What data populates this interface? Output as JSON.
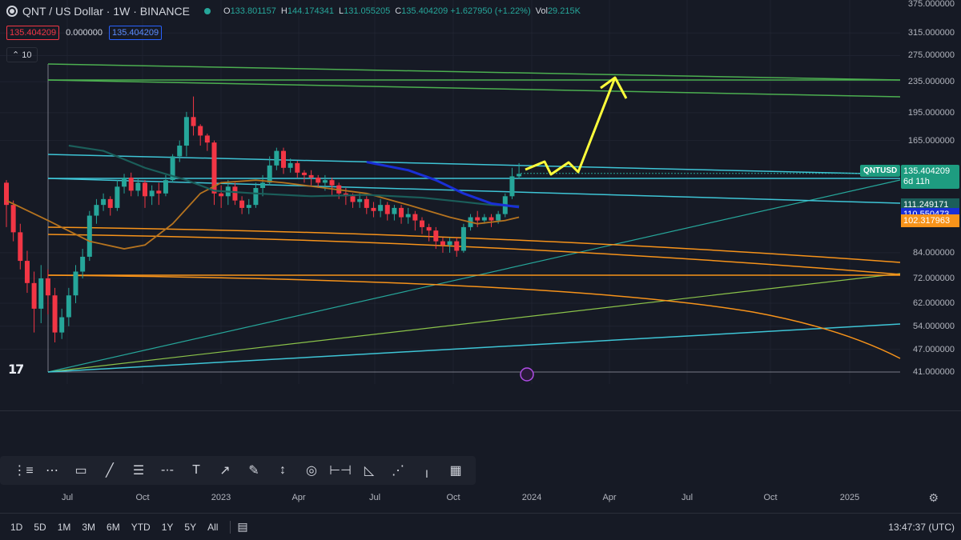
{
  "legend": {
    "title": "QNT / US Dollar · 1W · BINANCE",
    "ohlc": [
      {
        "k": "O",
        "v": "133.801157"
      },
      {
        "k": "H",
        "v": "144.174341"
      },
      {
        "k": "L",
        "v": "131.055205"
      },
      {
        "k": "C",
        "v": "135.404209 +1.627950 (+1.22%)"
      },
      {
        "k": "Vol",
        "v": "29.215K"
      }
    ]
  },
  "indicator": {
    "red_value": "135.404209",
    "zero_value": "0.000000",
    "blue_value": "135.404209",
    "collapse_count": "10"
  },
  "price_scale": {
    "ticks": [
      {
        "label": "375.000000",
        "price": 375
      },
      {
        "label": "315.000000",
        "price": 315
      },
      {
        "label": "275.000000",
        "price": 275
      },
      {
        "label": "235.000000",
        "price": 235
      },
      {
        "label": "195.000000",
        "price": 195
      },
      {
        "label": "165.000000",
        "price": 165
      },
      {
        "label": "84.000000",
        "price": 84
      },
      {
        "label": "72.000000",
        "price": 72
      },
      {
        "label": "62.000000",
        "price": 62
      },
      {
        "label": "54.000000",
        "price": 54
      },
      {
        "label": "47.000000",
        "price": 47
      },
      {
        "label": "41.000000",
        "price": 41
      }
    ],
    "last_price": "135.404209",
    "countdown": "6d 11h",
    "symbol": "QNTUSD",
    "labels": [
      {
        "text": "111.249171",
        "color": "#1b5e5a",
        "price": 111.25
      },
      {
        "text": "110.550473",
        "color": "#1a2fd6",
        "price": 108.4
      },
      {
        "text": "102.317963",
        "color": "#f7931a",
        "price": 102.3
      }
    ]
  },
  "time_axis": [
    {
      "label": "Jul",
      "x": 84
    },
    {
      "label": "Oct",
      "x": 178
    },
    {
      "label": "2023",
      "x": 276
    },
    {
      "label": "Apr",
      "x": 373
    },
    {
      "label": "Jul",
      "x": 468
    },
    {
      "label": "Oct",
      "x": 566
    },
    {
      "label": "2024",
      "x": 664
    },
    {
      "label": "Apr",
      "x": 761
    },
    {
      "label": "Jul",
      "x": 858
    },
    {
      "label": "Oct",
      "x": 962
    },
    {
      "label": "2025",
      "x": 1061
    }
  ],
  "ranges": [
    "1D",
    "5D",
    "1M",
    "3M",
    "6M",
    "YTD",
    "1Y",
    "5Y",
    "All"
  ],
  "clock": "13:47:37 (UTC)",
  "tools": [
    "trend-icon",
    "multi-line-icon",
    "rectangle-icon",
    "line-icon",
    "hlines-icon",
    "hline-icon",
    "text-icon",
    "arrow-icon",
    "brush-icon",
    "vline-icon",
    "circle-icon",
    "measure-icon",
    "fib-fan-icon",
    "speed-fan-icon",
    "vertical-tick-icon",
    "gann-box-icon"
  ],
  "tool_glyphs": [
    "⋮≡",
    "⋯",
    "▭",
    "╱",
    "☰",
    "-·-",
    "T",
    "↗",
    "✎",
    "↕",
    "◎",
    "⊢⊣",
    "◺",
    "⋰",
    "╷",
    "▦"
  ],
  "colors": {
    "up": "#26a69a",
    "down": "#f23645",
    "cyan": "#3ec5d6",
    "green": "#4caf50",
    "orange": "#f7931a",
    "yellow": "#ffff3b",
    "teal_ma": "#1b5e5a",
    "blue_ma": "#1a2fd6",
    "brown_ma": "#b5731f"
  },
  "chart_data": {
    "type": "candlestick",
    "series": [
      {
        "name": "QNTUSD",
        "values": [
          [
            128,
            112,
            130,
            98
          ],
          [
            112,
            95,
            115,
            90
          ],
          [
            95,
            80,
            100,
            76
          ],
          [
            80,
            70,
            85,
            66
          ],
          [
            70,
            60,
            75,
            52
          ],
          [
            60,
            72,
            78,
            55
          ],
          [
            72,
            65,
            76,
            58
          ],
          [
            65,
            52,
            68,
            49
          ],
          [
            52,
            57,
            60,
            50
          ],
          [
            57,
            65,
            68,
            54
          ],
          [
            65,
            75,
            78,
            62
          ],
          [
            75,
            82,
            86,
            72
          ],
          [
            82,
            105,
            108,
            80
          ],
          [
            105,
            112,
            116,
            100
          ],
          [
            112,
            116,
            120,
            108
          ],
          [
            116,
            110,
            118,
            105
          ],
          [
            110,
            125,
            130,
            108
          ],
          [
            125,
            132,
            135,
            120
          ],
          [
            132,
            122,
            136,
            118
          ],
          [
            122,
            128,
            132,
            118
          ],
          [
            128,
            118,
            130,
            110
          ],
          [
            118,
            122,
            126,
            112
          ],
          [
            122,
            120,
            128,
            112
          ],
          [
            120,
            130,
            134,
            118
          ],
          [
            130,
            150,
            152,
            128
          ],
          [
            150,
            160,
            165,
            145
          ],
          [
            160,
            190,
            196,
            150
          ],
          [
            190,
            180,
            215,
            170
          ],
          [
            180,
            170,
            182,
            160
          ],
          [
            170,
            163,
            172,
            155
          ],
          [
            163,
            120,
            165,
            112
          ],
          [
            120,
            118,
            126,
            110
          ],
          [
            118,
            125,
            130,
            112
          ],
          [
            125,
            115,
            128,
            112
          ],
          [
            115,
            110,
            118,
            106
          ],
          [
            110,
            112,
            116,
            106
          ],
          [
            112,
            124,
            128,
            110
          ],
          [
            124,
            128,
            134,
            118
          ],
          [
            128,
            142,
            150,
            126
          ],
          [
            142,
            155,
            158,
            138
          ],
          [
            155,
            140,
            158,
            135
          ],
          [
            140,
            144,
            148,
            136
          ],
          [
            144,
            136,
            146,
            132
          ],
          [
            136,
            134,
            138,
            128
          ],
          [
            134,
            132,
            138,
            126
          ],
          [
            132,
            128,
            134,
            124
          ],
          [
            128,
            130,
            134,
            122
          ],
          [
            130,
            126,
            132,
            118
          ],
          [
            126,
            120,
            128,
            116
          ],
          [
            120,
            118,
            124,
            112
          ],
          [
            118,
            114,
            120,
            110
          ],
          [
            114,
            116,
            120,
            110
          ],
          [
            116,
            110,
            118,
            106
          ],
          [
            110,
            108,
            114,
            104
          ],
          [
            108,
            112,
            116,
            104
          ],
          [
            112,
            106,
            114,
            102
          ],
          [
            106,
            110,
            112,
            102
          ],
          [
            110,
            104,
            112,
            100
          ],
          [
            104,
            106,
            110,
            100
          ],
          [
            106,
            102,
            108,
            96
          ],
          [
            102,
            98,
            104,
            94
          ],
          [
            98,
            96,
            100,
            90
          ],
          [
            96,
            90,
            98,
            86
          ],
          [
            90,
            88,
            92,
            84
          ],
          [
            88,
            90,
            92,
            84
          ],
          [
            90,
            85,
            92,
            82
          ],
          [
            85,
            98,
            100,
            84
          ],
          [
            98,
            104,
            106,
            96
          ],
          [
            104,
            102,
            108,
            98
          ],
          [
            102,
            104,
            106,
            100
          ],
          [
            104,
            102,
            106,
            98
          ],
          [
            102,
            106,
            108,
            100
          ],
          [
            106,
            118,
            120,
            104
          ],
          [
            118,
            133,
            140,
            116
          ],
          [
            133,
            135,
            144,
            131
          ]
        ]
      }
    ]
  }
}
